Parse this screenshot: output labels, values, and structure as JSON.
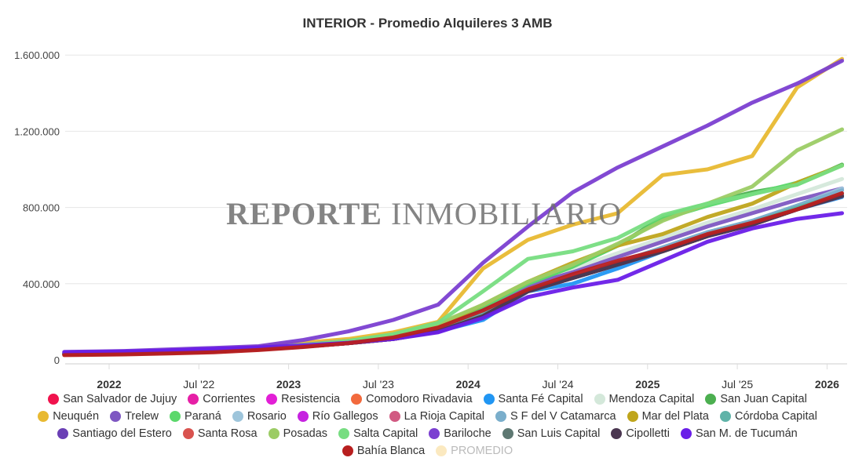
{
  "chart_data": {
    "type": "line",
    "title": "INTERIOR - Promedio Alquileres 3 AMB",
    "watermark": "REPORTE INMOBILIARIO",
    "xlabel": "",
    "ylabel": "",
    "ylim": [
      0,
      1650000
    ],
    "grid": true,
    "legend_position": "bottom",
    "y_ticks": [
      {
        "value": 0,
        "label": "0"
      },
      {
        "value": 400000,
        "label": "400.000"
      },
      {
        "value": 800000,
        "label": "800.000"
      },
      {
        "value": 1200000,
        "label": "1.200.000"
      },
      {
        "value": 1600000,
        "label": "1.600.000"
      }
    ],
    "x_ticks": [
      {
        "month": 0,
        "label": "2022",
        "major": true
      },
      {
        "month": 6,
        "label": "Jul '22",
        "major": false
      },
      {
        "month": 12,
        "label": "2023",
        "major": true
      },
      {
        "month": 18,
        "label": "Jul '23",
        "major": false
      },
      {
        "month": 24,
        "label": "2024",
        "major": true
      },
      {
        "month": 30,
        "label": "Jul '24",
        "major": false
      },
      {
        "month": 36,
        "label": "2025",
        "major": true
      },
      {
        "month": 42,
        "label": "Jul '25",
        "major": false
      },
      {
        "month": 48,
        "label": "2026",
        "major": true
      }
    ],
    "x_months_since_jan_2022": [
      -3,
      1,
      4,
      7,
      10,
      13,
      16,
      19,
      22,
      25,
      28,
      31,
      34,
      37,
      40,
      43,
      46,
      49
    ],
    "series": [
      {
        "name": "San Salvador de Jujuy",
        "color": "#f0134d",
        "visible": true,
        "values": [
          30000,
          33000,
          38000,
          44000,
          55000,
          70000,
          88000,
          110000,
          150000,
          230000,
          360000,
          430000,
          500000,
          570000,
          650000,
          710000,
          790000,
          860000
        ]
      },
      {
        "name": "Corrientes",
        "color": "#e61fa6",
        "visible": true,
        "values": [
          30000,
          33000,
          38000,
          44000,
          55000,
          70000,
          88000,
          110000,
          150000,
          230000,
          360000,
          430000,
          500000,
          570000,
          650000,
          710000,
          790000,
          860000
        ]
      },
      {
        "name": "Resistencia",
        "color": "#e21fd6",
        "visible": true,
        "values": [
          30000,
          33000,
          38000,
          44000,
          55000,
          70000,
          88000,
          110000,
          150000,
          230000,
          360000,
          430000,
          500000,
          570000,
          650000,
          710000,
          790000,
          860000
        ]
      },
      {
        "name": "Comodoro Rivadavia",
        "color": "#f26a3d",
        "visible": true,
        "values": [
          30000,
          33000,
          38000,
          44000,
          55000,
          70000,
          88000,
          110000,
          150000,
          230000,
          360000,
          430000,
          500000,
          570000,
          650000,
          710000,
          790000,
          860000
        ]
      },
      {
        "name": "Santa Fé Capital",
        "color": "#2196f3",
        "visible": true,
        "values": [
          32000,
          35000,
          40000,
          46000,
          57000,
          72000,
          90000,
          115000,
          150000,
          210000,
          360000,
          400000,
          480000,
          570000,
          670000,
          710000,
          790000,
          855000
        ]
      },
      {
        "name": "Mendoza Capital",
        "color": "#d4e8da",
        "visible": true,
        "values": [
          35000,
          38000,
          43000,
          50000,
          62000,
          78000,
          98000,
          125000,
          180000,
          290000,
          400000,
          480000,
          560000,
          640000,
          720000,
          790000,
          870000,
          950000
        ]
      },
      {
        "name": "San Juan Capital",
        "color": "#4caf50",
        "visible": true,
        "values": [
          33000,
          36000,
          41000,
          48000,
          60000,
          76000,
          96000,
          125000,
          180000,
          280000,
          400000,
          490000,
          600000,
          750000,
          820000,
          880000,
          920000,
          1025000
        ]
      },
      {
        "name": "Neuquén",
        "color": "#e8b932",
        "visible": true,
        "values": [
          35000,
          38000,
          45000,
          55000,
          70000,
          90000,
          110000,
          145000,
          200000,
          480000,
          630000,
          710000,
          770000,
          970000,
          1000000,
          1070000,
          1430000,
          1580000
        ]
      },
      {
        "name": "Trelew",
        "color": "#7e57c2",
        "visible": true,
        "values": [
          36000,
          39000,
          45000,
          52000,
          64000,
          80000,
          100000,
          130000,
          180000,
          270000,
          390000,
          460000,
          540000,
          620000,
          700000,
          770000,
          840000,
          900000
        ]
      },
      {
        "name": "Paraná",
        "color": "#5bd86b",
        "visible": true,
        "values": [
          33000,
          36000,
          41000,
          48000,
          60000,
          76000,
          96000,
          125000,
          180000,
          280000,
          400000,
          490000,
          600000,
          740000,
          810000,
          870000,
          930000,
          1020000
        ]
      },
      {
        "name": "Rosario",
        "color": "#9ec5db",
        "visible": true,
        "values": [
          32000,
          35000,
          40000,
          46000,
          57000,
          72000,
          90000,
          115000,
          160000,
          240000,
          370000,
          430000,
          510000,
          590000,
          670000,
          730000,
          810000,
          900000
        ]
      },
      {
        "name": "Río Gallegos",
        "color": "#c622e0",
        "visible": true,
        "values": [
          30000,
          33000,
          38000,
          44000,
          55000,
          70000,
          88000,
          110000,
          150000,
          230000,
          360000,
          430000,
          500000,
          570000,
          650000,
          710000,
          790000,
          860000
        ]
      },
      {
        "name": "La Rioja Capital",
        "color": "#d15a82",
        "visible": true,
        "values": [
          30000,
          33000,
          38000,
          44000,
          55000,
          70000,
          88000,
          110000,
          150000,
          230000,
          360000,
          430000,
          500000,
          570000,
          650000,
          710000,
          790000,
          860000
        ]
      },
      {
        "name": "S F del V Catamarca",
        "color": "#7aaecb",
        "visible": true,
        "values": [
          32000,
          35000,
          40000,
          46000,
          57000,
          72000,
          90000,
          115000,
          160000,
          240000,
          370000,
          430000,
          510000,
          590000,
          670000,
          730000,
          810000,
          890000
        ]
      },
      {
        "name": "Mar del Plata",
        "color": "#bfa51c",
        "visible": true,
        "values": [
          34000,
          37000,
          42000,
          49000,
          61000,
          77000,
          97000,
          125000,
          180000,
          290000,
          410000,
          510000,
          600000,
          660000,
          750000,
          820000,
          930000,
          1020000
        ]
      },
      {
        "name": "Córdoba Capital",
        "color": "#5fb3a8",
        "visible": true,
        "values": [
          32000,
          35000,
          40000,
          46000,
          57000,
          72000,
          90000,
          115000,
          160000,
          240000,
          370000,
          430000,
          500000,
          580000,
          660000,
          720000,
          800000,
          870000
        ]
      },
      {
        "name": "Santiago del Estero",
        "color": "#6a3fb5",
        "visible": true,
        "values": [
          30000,
          33000,
          38000,
          44000,
          55000,
          70000,
          88000,
          110000,
          150000,
          230000,
          360000,
          430000,
          500000,
          570000,
          650000,
          710000,
          790000,
          860000
        ]
      },
      {
        "name": "Santa Rosa",
        "color": "#d9534f",
        "visible": true,
        "values": [
          30000,
          33000,
          38000,
          44000,
          55000,
          70000,
          88000,
          110000,
          150000,
          230000,
          360000,
          430000,
          500000,
          570000,
          650000,
          710000,
          790000,
          860000
        ]
      },
      {
        "name": "Posadas",
        "color": "#9ccc65",
        "visible": true,
        "values": [
          33000,
          36000,
          41000,
          48000,
          60000,
          76000,
          96000,
          130000,
          190000,
          290000,
          410000,
          500000,
          610000,
          730000,
          820000,
          910000,
          1100000,
          1210000
        ]
      },
      {
        "name": "Salta Capital",
        "color": "#77dd81",
        "visible": true,
        "values": [
          34000,
          37000,
          42000,
          50000,
          62000,
          78000,
          100000,
          135000,
          195000,
          360000,
          530000,
          570000,
          640000,
          760000,
          820000,
          870000,
          920000,
          1020000
        ]
      },
      {
        "name": "Bariloche",
        "color": "#7b3fd1",
        "visible": true,
        "values": [
          42000,
          47000,
          55000,
          63000,
          72000,
          105000,
          150000,
          210000,
          290000,
          510000,
          700000,
          880000,
          1010000,
          1120000,
          1230000,
          1350000,
          1450000,
          1570000
        ]
      },
      {
        "name": "San Luis Capital",
        "color": "#5e7872",
        "visible": true,
        "values": [
          30000,
          33000,
          38000,
          44000,
          55000,
          70000,
          88000,
          110000,
          150000,
          230000,
          360000,
          430000,
          500000,
          570000,
          650000,
          710000,
          790000,
          860000
        ]
      },
      {
        "name": "Cipolletti",
        "color": "#4a3650",
        "visible": true,
        "values": [
          30000,
          33000,
          38000,
          44000,
          55000,
          70000,
          88000,
          110000,
          150000,
          230000,
          360000,
          430000,
          500000,
          570000,
          650000,
          710000,
          790000,
          860000
        ]
      },
      {
        "name": "San M. de Tucumán",
        "color": "#6a1ee8",
        "visible": true,
        "values": [
          40000,
          44000,
          50000,
          58000,
          66000,
          76000,
          90000,
          110000,
          145000,
          220000,
          330000,
          380000,
          420000,
          520000,
          620000,
          690000,
          740000,
          770000
        ]
      },
      {
        "name": "Bahía Blanca",
        "color": "#b81f1f",
        "visible": true,
        "values": [
          25000,
          29000,
          34000,
          40000,
          52000,
          68000,
          88000,
          118000,
          170000,
          260000,
          370000,
          450000,
          520000,
          580000,
          660000,
          720000,
          790000,
          875000
        ]
      },
      {
        "name": "PROMEDIO",
        "color": "#fbe9c0",
        "visible": false,
        "values": []
      }
    ]
  }
}
